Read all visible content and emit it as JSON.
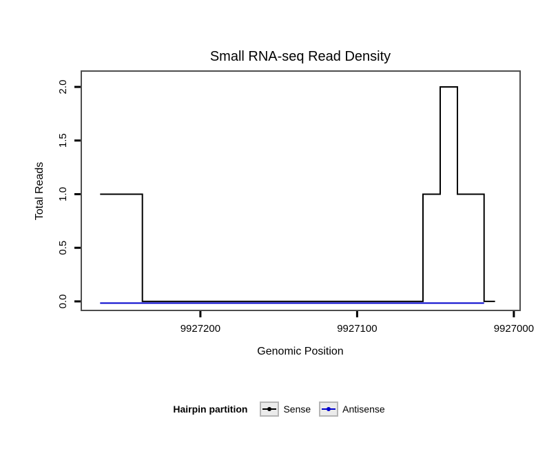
{
  "chart_data": {
    "type": "line",
    "subtype": "step",
    "title": "Small RNA-seq Read Density",
    "xlabel": "Genomic Position",
    "ylabel": "Total Reads",
    "x_axis_reversed": true,
    "x_domain": [
      9927276,
      9926996
    ],
    "y_domain": [
      -0.084,
      2.148
    ],
    "x_ticks": [
      9927200,
      9927100,
      9927000
    ],
    "x_tick_labels": [
      "9927200",
      "9927100",
      "9927000"
    ],
    "y_ticks": [
      0.0,
      0.5,
      1.0,
      1.5,
      2.0
    ],
    "y_tick_labels": [
      "0.0",
      "0.5",
      "1.0",
      "1.5",
      "2.0"
    ],
    "grid": false,
    "legend_title": "Hairpin partition",
    "legend_position": "bottom",
    "panel_border_color": "#4d4d4d",
    "series": [
      {
        "name": "Sense",
        "color": "#000000",
        "steps": [
          [
            9927264,
            1
          ],
          [
            9927237,
            0
          ],
          [
            9927058,
            1
          ],
          [
            9927047,
            2
          ],
          [
            9927036,
            1
          ],
          [
            9927019,
            0
          ],
          [
            9927012,
            0
          ]
        ]
      },
      {
        "name": "Antisense",
        "color": "#0000cc",
        "steps": [
          [
            9927264,
            0
          ],
          [
            9927019,
            0
          ]
        ]
      }
    ]
  }
}
